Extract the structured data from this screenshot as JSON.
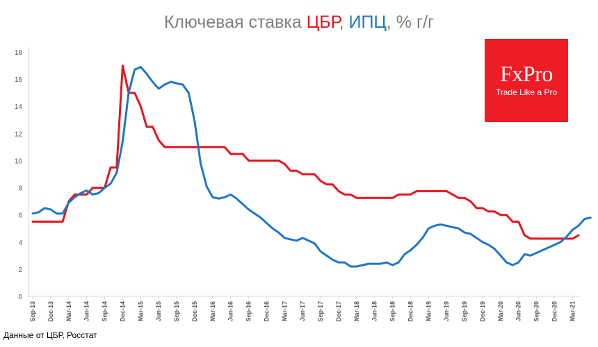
{
  "title": {
    "part1": "Ключевая ставка ",
    "part2": "ЦБР",
    "part3": ", ",
    "part4": "ИПЦ",
    "part5": ", % г/г"
  },
  "logo": {
    "name": "FxPro",
    "tagline": "Trade Like a Pro"
  },
  "source_note": "Данные от ЦБР, Росстат",
  "colors": {
    "rate": "#e8141e",
    "cpi": "#1f77c4",
    "title": "#7f7f7f",
    "logo_bg": "#ee1c25"
  },
  "chart_data": {
    "type": "line",
    "title": "Ключевая ставка ЦБР, ИПЦ, % г/г",
    "xlabel": "",
    "ylabel": "",
    "ylim": [
      0,
      18
    ],
    "yticks": [
      0,
      2,
      4,
      6,
      8,
      10,
      12,
      14,
      16,
      18
    ],
    "grid": false,
    "x_tick_labels": [
      "Sep-13",
      "Dec-13",
      "Mar-14",
      "Jun-14",
      "Sep-14",
      "Dec-14",
      "Mar-15",
      "Jun-15",
      "Sep-15",
      "Dec-15",
      "Mar-16",
      "Jun-16",
      "Sep-16",
      "Dec-16",
      "Mar-17",
      "Jun-17",
      "Sep-17",
      "Dec-17",
      "Mar-18",
      "Jun-18",
      "Sep-18",
      "Dec-18",
      "Mar-19",
      "Jun-19",
      "Sep-19",
      "Dec-19",
      "Mar-20",
      "Jun-20",
      "Sep-20",
      "Dec-20",
      "Mar-21"
    ],
    "series": [
      {
        "name": "Ключевая ставка ЦБР",
        "color": "#e8141e",
        "values": [
          5.5,
          5.5,
          5.5,
          5.5,
          5.5,
          5.5,
          7.0,
          7.5,
          7.5,
          7.5,
          8.0,
          8.0,
          8.0,
          9.5,
          9.5,
          17.0,
          15.0,
          15.0,
          14.0,
          12.5,
          12.5,
          11.5,
          11.0,
          11.0,
          11.0,
          11.0,
          11.0,
          11.0,
          11.0,
          11.0,
          11.0,
          11.0,
          11.0,
          10.5,
          10.5,
          10.5,
          10.0,
          10.0,
          10.0,
          10.0,
          10.0,
          10.0,
          9.75,
          9.25,
          9.25,
          9.0,
          9.0,
          9.0,
          8.5,
          8.25,
          8.25,
          7.75,
          7.5,
          7.5,
          7.25,
          7.25,
          7.25,
          7.25,
          7.25,
          7.25,
          7.25,
          7.5,
          7.5,
          7.5,
          7.75,
          7.75,
          7.75,
          7.75,
          7.75,
          7.75,
          7.5,
          7.25,
          7.25,
          7.0,
          6.5,
          6.5,
          6.25,
          6.25,
          6.0,
          6.0,
          5.5,
          5.5,
          4.5,
          4.25,
          4.25,
          4.25,
          4.25,
          4.25,
          4.25,
          4.25,
          4.25,
          4.5
        ]
      },
      {
        "name": "ИПЦ",
        "color": "#1f77c4",
        "values": [
          6.1,
          6.2,
          6.5,
          6.4,
          6.1,
          6.1,
          6.9,
          7.3,
          7.6,
          7.8,
          7.5,
          7.6,
          8.0,
          8.3,
          9.1,
          11.4,
          15.0,
          16.7,
          16.9,
          16.4,
          15.8,
          15.3,
          15.6,
          15.8,
          15.7,
          15.6,
          15.0,
          12.9,
          9.8,
          8.1,
          7.3,
          7.2,
          7.3,
          7.5,
          7.2,
          6.8,
          6.4,
          6.1,
          5.8,
          5.4,
          5.0,
          4.7,
          4.3,
          4.2,
          4.1,
          4.3,
          4.1,
          3.9,
          3.3,
          3.0,
          2.7,
          2.5,
          2.5,
          2.2,
          2.2,
          2.3,
          2.4,
          2.4,
          2.4,
          2.5,
          2.3,
          2.5,
          3.1,
          3.4,
          3.8,
          4.3,
          5.0,
          5.2,
          5.3,
          5.2,
          5.1,
          5.0,
          4.7,
          4.6,
          4.3,
          4.0,
          3.8,
          3.5,
          3.0,
          2.5,
          2.3,
          2.5,
          3.1,
          3.0,
          3.2,
          3.4,
          3.6,
          3.8,
          4.0,
          4.4,
          4.9,
          5.2,
          5.7,
          5.8
        ]
      }
    ]
  }
}
